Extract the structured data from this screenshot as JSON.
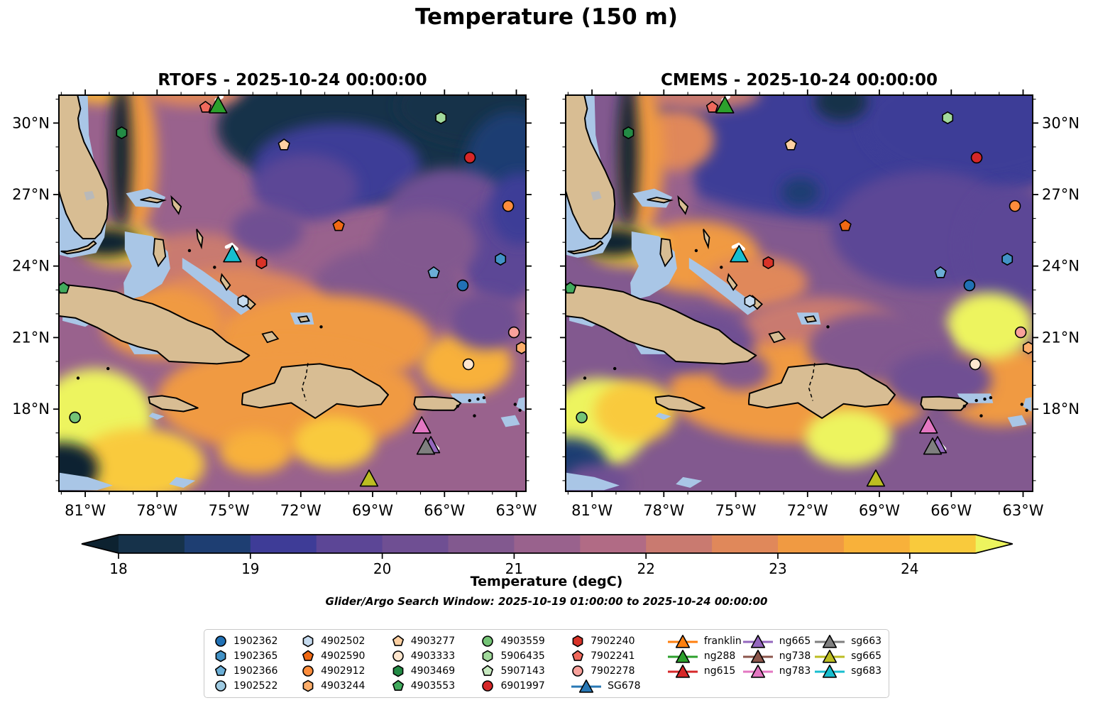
{
  "figure": {
    "title": "Temperature (150 m)"
  },
  "colorbar": {
    "label": "Temperature (degC)",
    "subtitle": "Glider/Argo Search Window: 2025-10-19 01:00:00 to 2025-10-24 00:00:00",
    "ticks": [
      18,
      19,
      20,
      21,
      22,
      23,
      24
    ],
    "range": [
      18,
      24.5
    ],
    "segment_step": 0.5,
    "under_color": "#0d2230",
    "over_color": "#edf45e",
    "segment_colors": [
      "#16324a",
      "#1e3e72",
      "#3e3c97",
      "#5c4696",
      "#6f4f93",
      "#82598f",
      "#99628d",
      "#b16b85",
      "#c97a70",
      "#e0885a",
      "#f09a42",
      "#f8b13a",
      "#f9ca3c"
    ]
  },
  "chart_data": {
    "type": "heatmap",
    "projection": "PlateCarree",
    "axes": {
      "lon_min": -82.1,
      "lon_max": -62.6,
      "lat_min": 14.55,
      "lat_max": 31.17,
      "lon_tick_values": [
        -81,
        -78,
        -75,
        -72,
        -69,
        -66,
        -63
      ],
      "lon_tick_labels": [
        "81°W",
        "78°W",
        "75°W",
        "72°W",
        "69°W",
        "66°W",
        "63°W"
      ],
      "lat_tick_values": [
        30,
        27,
        24,
        21,
        18
      ],
      "lat_tick_labels": [
        "30°N",
        "27°N",
        "24°N",
        "21°N",
        "18°N"
      ]
    },
    "land_color": "#d8bd93",
    "shallow_color": "#a9c6e6",
    "subplots": [
      {
        "id": "rtofs",
        "title": "RTOFS - 2025-10-24 00:00:00",
        "base_temp": 21.2,
        "regions": [
          [
            -67.5,
            29.8,
            8.0,
            3.0,
            18.4
          ],
          [
            -64.0,
            30.7,
            4.0,
            1.7,
            18.15
          ],
          [
            -70.5,
            28.2,
            3.5,
            1.8,
            19.3
          ],
          [
            -63.2,
            28.0,
            2.0,
            2.5,
            18.9
          ],
          [
            -65.8,
            26.3,
            2.6,
            1.8,
            20.3
          ],
          [
            -71.8,
            27.3,
            2.2,
            1.4,
            19.9
          ],
          [
            -63.6,
            24.6,
            1.7,
            2.2,
            19.8
          ],
          [
            -68.4,
            22.9,
            3.2,
            1.9,
            20.8
          ],
          [
            -66.8,
            24.9,
            2.2,
            1.5,
            20.5
          ],
          [
            -76.3,
            24.1,
            2.8,
            1.3,
            22.0
          ],
          [
            -74.6,
            22.4,
            3.6,
            1.5,
            22.9
          ],
          [
            -71.0,
            20.9,
            4.5,
            1.9,
            23.1
          ],
          [
            -72.5,
            18.4,
            5.5,
            2.3,
            23.3
          ],
          [
            -77.8,
            21.6,
            2.5,
            1.5,
            23.4
          ],
          [
            -65.1,
            19.9,
            1.9,
            1.3,
            23.7
          ],
          [
            -76.5,
            31.3,
            2.0,
            0.6,
            22.5
          ],
          [
            -80.3,
            31.3,
            1.5,
            0.5,
            23.5
          ],
          [
            -78.85,
            28.6,
            0.85,
            3.1,
            23.3
          ],
          [
            -79.6,
            24.9,
            1.7,
            0.9,
            24.1
          ],
          [
            -80.6,
            17.6,
            2.4,
            2.1,
            24.5
          ],
          [
            -78.7,
            15.7,
            2.7,
            1.5,
            24.3
          ],
          [
            -70.6,
            16.6,
            1.7,
            1.1,
            24.4
          ],
          [
            -73.9,
            16.2,
            1.5,
            0.9,
            23.8
          ],
          [
            -79.5,
            28.7,
            0.42,
            3.1,
            17.9
          ],
          [
            -80.15,
            25.0,
            1.4,
            0.6,
            17.9
          ],
          [
            -81.95,
            15.5,
            1.5,
            1.1,
            17.9
          ],
          [
            -73.4,
            25.5,
            1.5,
            1.0,
            20.2
          ],
          [
            -64.3,
            21.7,
            1.5,
            1.2,
            20.0
          ],
          [
            -62.9,
            26.4,
            1.2,
            1.5,
            19.4
          ]
        ]
      },
      {
        "id": "cmems",
        "title": "CMEMS - 2025-10-24 00:00:00",
        "base_temp": 20.7,
        "regions": [
          [
            -70.0,
            29.3,
            9.0,
            3.4,
            19.4
          ],
          [
            -65.2,
            30.0,
            4.5,
            2.4,
            19.2
          ],
          [
            -70.6,
            30.9,
            1.1,
            0.8,
            18.4
          ],
          [
            -72.3,
            27.1,
            0.8,
            0.6,
            18.9
          ],
          [
            -67.0,
            25.5,
            4.0,
            2.5,
            19.8
          ],
          [
            -63.6,
            24.8,
            2.0,
            2.6,
            19.6
          ],
          [
            -78.4,
            27.2,
            1.7,
            2.2,
            21.4
          ],
          [
            -77.5,
            29.3,
            1.6,
            1.3,
            22.7
          ],
          [
            -76.5,
            31.2,
            2.5,
            0.7,
            22.0
          ],
          [
            -76.6,
            24.4,
            2.6,
            1.5,
            23.3
          ],
          [
            -74.2,
            23.3,
            2.2,
            1.1,
            22.5
          ],
          [
            -71.5,
            21.0,
            3.5,
            1.7,
            22.3
          ],
          [
            -72.3,
            18.7,
            5.5,
            2.1,
            23.3
          ],
          [
            -64.0,
            19.0,
            2.6,
            1.7,
            23.4
          ],
          [
            -78.85,
            28.6,
            0.85,
            3.1,
            23.2
          ],
          [
            -79.6,
            24.9,
            1.7,
            0.9,
            24.1
          ],
          [
            -80.75,
            17.4,
            2.1,
            1.9,
            24.6
          ],
          [
            -79.2,
            17.9,
            1.7,
            1.3,
            24.4
          ],
          [
            -70.3,
            16.8,
            1.8,
            1.2,
            24.5
          ],
          [
            -64.4,
            21.5,
            1.8,
            1.4,
            24.5
          ],
          [
            -79.5,
            28.7,
            0.42,
            3.1,
            17.9
          ],
          [
            -80.15,
            25.0,
            1.4,
            0.6,
            17.9
          ],
          [
            -81.95,
            15.6,
            1.6,
            1.2,
            18.6
          ],
          [
            -80.8,
            14.9,
            1.4,
            0.8,
            20.0
          ],
          [
            -69.0,
            20.6,
            3.0,
            1.5,
            20.5
          ],
          [
            -66.5,
            19.2,
            2.2,
            1.2,
            20.3
          ],
          [
            -76.6,
            20.8,
            2.4,
            1.3,
            20.4
          ],
          [
            -74.8,
            19.6,
            1.2,
            0.8,
            20.6
          ]
        ]
      }
    ],
    "platforms": [
      {
        "id": "1902362",
        "shape": "circle",
        "color": "#2171b5",
        "lon": -65.24,
        "lat": 23.19,
        "on_map": true
      },
      {
        "id": "1902365",
        "shape": "hexagon",
        "color": "#4292c6",
        "lon": -63.66,
        "lat": 24.29,
        "on_map": true
      },
      {
        "id": "1902366",
        "shape": "pentagon",
        "color": "#6baed6",
        "lon": -66.45,
        "lat": 23.72,
        "on_map": true
      },
      {
        "id": "1902522",
        "shape": "circle",
        "color": "#9ecae1",
        "on_map": false
      },
      {
        "id": "4902502",
        "shape": "hexagon",
        "color": "#c6dbef",
        "lon": -74.41,
        "lat": 22.53,
        "on_map": true
      },
      {
        "id": "4902590",
        "shape": "pentagon",
        "color": "#f16913",
        "lon": -70.42,
        "lat": 25.69,
        "on_map": true
      },
      {
        "id": "4902912",
        "shape": "circle",
        "color": "#fd8d3c",
        "lon": -63.34,
        "lat": 26.52,
        "on_map": true
      },
      {
        "id": "4903244",
        "shape": "hexagon",
        "color": "#fdae6b",
        "lon": -62.78,
        "lat": 20.57,
        "on_map": true
      },
      {
        "id": "4903277",
        "shape": "pentagon",
        "color": "#fdd0a2",
        "lon": -72.7,
        "lat": 29.08,
        "on_map": true
      },
      {
        "id": "4903333",
        "shape": "circle",
        "color": "#fee6ce",
        "lon": -65.0,
        "lat": 19.88,
        "on_map": true
      },
      {
        "id": "4903469",
        "shape": "hexagon",
        "color": "#238b45",
        "lon": -79.48,
        "lat": 29.59,
        "on_map": true
      },
      {
        "id": "4903553",
        "shape": "pentagon",
        "color": "#41ab5d",
        "lon": -81.91,
        "lat": 23.07,
        "on_map": true
      },
      {
        "id": "4903559",
        "shape": "circle",
        "color": "#74c476",
        "lon": -81.43,
        "lat": 17.65,
        "on_map": true
      },
      {
        "id": "5906435",
        "shape": "hexagon",
        "color": "#a1d99b",
        "lon": -66.15,
        "lat": 30.22,
        "on_map": true
      },
      {
        "id": "5907143",
        "shape": "pentagon",
        "color": "#c7e9c0",
        "on_map": false
      },
      {
        "id": "6901997",
        "shape": "circle",
        "color": "#d62728",
        "lon": -64.94,
        "lat": 28.55,
        "on_map": true
      },
      {
        "id": "7902240",
        "shape": "hexagon",
        "color": "#d93328",
        "lon": -73.64,
        "lat": 24.14,
        "on_map": true
      },
      {
        "id": "7902241",
        "shape": "pentagon",
        "color": "#f0695c",
        "lon": -75.98,
        "lat": 30.66,
        "on_map": true
      },
      {
        "id": "7902278",
        "shape": "circle",
        "color": "#f8a19b",
        "lon": -63.1,
        "lat": 21.22,
        "on_map": true
      },
      {
        "id": "SG678",
        "shape": "triangle",
        "color": "#2878b5",
        "on_map": false
      },
      {
        "id": "franklin",
        "shape": "triangle",
        "color": "#ff7f0e",
        "on_map": false
      },
      {
        "id": "ng288",
        "shape": "triangle",
        "color": "#2ca02c",
        "lon": -75.45,
        "lat": 30.72,
        "on_map": true,
        "track": [
          [
            -75.3,
            31.1
          ],
          [
            -75.52,
            30.97
          ]
        ]
      },
      {
        "id": "ng615",
        "shape": "triangle",
        "color": "#d62728",
        "on_map": false
      },
      {
        "id": "ng665",
        "shape": "triangle",
        "color": "#9467bd",
        "lon": -66.57,
        "lat": 16.46,
        "on_map": true
      },
      {
        "id": "ng738",
        "shape": "triangle",
        "color": "#8c564b",
        "on_map": false
      },
      {
        "id": "ng783",
        "shape": "triangle",
        "color": "#e377c2",
        "lon": -66.95,
        "lat": 17.29,
        "on_map": true
      },
      {
        "id": "sg663",
        "shape": "triangle",
        "color": "#7f7f7f",
        "lon": -66.78,
        "lat": 16.4,
        "on_map": true,
        "track": [
          [
            -66.45,
            16.52
          ],
          [
            -66.28,
            16.33
          ]
        ]
      },
      {
        "id": "sg665",
        "shape": "triangle",
        "color": "#bcbd22",
        "lon": -69.15,
        "lat": 15.06,
        "on_map": true
      },
      {
        "id": "sg683",
        "shape": "triangle",
        "color": "#17becf",
        "lon": -74.86,
        "lat": 24.47,
        "on_map": true,
        "track": [
          [
            -75.1,
            24.8
          ],
          [
            -74.88,
            24.9
          ],
          [
            -74.68,
            24.72
          ]
        ]
      }
    ],
    "legend_columns": [
      [
        "1902362",
        "1902365",
        "1902366",
        "1902522"
      ],
      [
        "4902502",
        "4902590",
        "4902912",
        "4903244"
      ],
      [
        "4903277",
        "4903333",
        "4903469",
        "4903553"
      ],
      [
        "4903559",
        "5906435",
        "5907143",
        "6901997"
      ],
      [
        "7902240",
        "7902241",
        "7902278",
        "SG678"
      ],
      [
        "franklin",
        "ng288",
        "ng615"
      ],
      [
        "ng665",
        "ng738",
        "ng783"
      ],
      [
        "sg663",
        "sg665",
        "sg683"
      ]
    ]
  }
}
